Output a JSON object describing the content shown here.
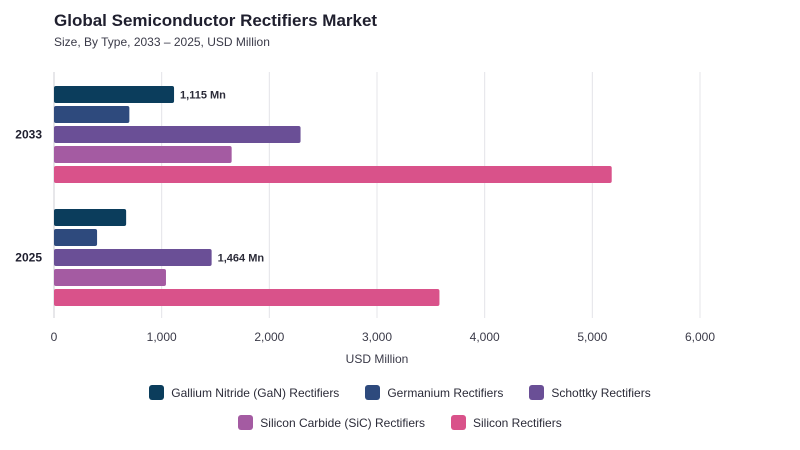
{
  "header": {
    "title": "Global Semiconductor Rectifiers Market",
    "subtitle": "Size, By Type, 2033 – 2025, USD Million"
  },
  "chart_data": {
    "type": "bar",
    "orientation": "horizontal",
    "categories": [
      "2033",
      "2025"
    ],
    "series": [
      {
        "name": "Gallium Nitride (GaN) Rectifiers",
        "color": "#0b3d5c",
        "values": [
          1115,
          670
        ]
      },
      {
        "name": "Germanium Rectifiers",
        "color": "#2e4a7d",
        "values": [
          700,
          400
        ]
      },
      {
        "name": "Schottky Rectifiers",
        "color": "#6a4f96",
        "values": [
          2290,
          1464
        ]
      },
      {
        "name": "Silicon Carbide (SiC) Rectifiers",
        "color": "#a45ba2",
        "values": [
          1650,
          1040
        ]
      },
      {
        "name": "Silicon Rectifiers",
        "color": "#d9528a",
        "values": [
          5180,
          3580
        ]
      }
    ],
    "data_labels": [
      {
        "category": "2033",
        "series": "Gallium Nitride (GaN) Rectifiers",
        "text": "1,115 Mn"
      },
      {
        "category": "2025",
        "series": "Schottky Rectifiers",
        "text": "1,464 Mn"
      }
    ],
    "xlabel": "USD Million",
    "xlim": [
      0,
      6000
    ],
    "xticks": [
      0,
      1000,
      2000,
      3000,
      4000,
      5000,
      6000
    ],
    "xtick_labels": [
      "0",
      "1,000",
      "2,000",
      "3,000",
      "4,000",
      "5,000",
      "6,000"
    ],
    "grid": "vertical",
    "legend_position": "bottom"
  }
}
